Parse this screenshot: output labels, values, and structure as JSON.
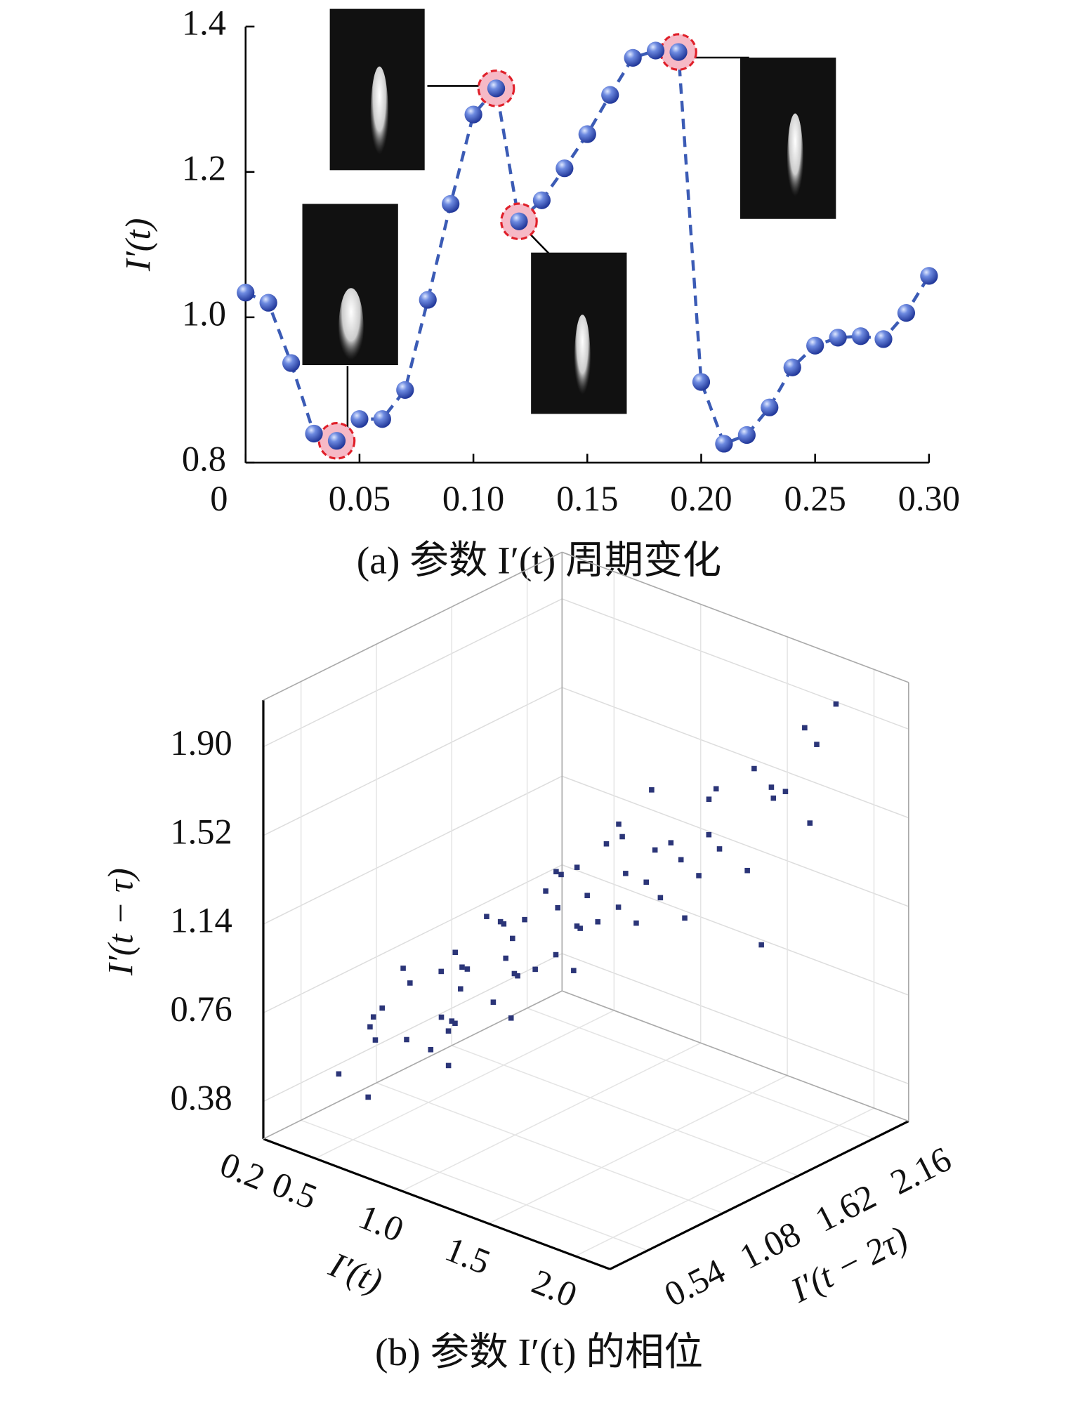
{
  "chart_data": [
    {
      "type": "line",
      "caption": "(a) 参数 I′(t) 周期变化",
      "ylabel": "I′(t)",
      "x": [
        0.0,
        0.01,
        0.02,
        0.03,
        0.04,
        0.05,
        0.06,
        0.07,
        0.08,
        0.09,
        0.1,
        0.11,
        0.12,
        0.13,
        0.14,
        0.15,
        0.16,
        0.17,
        0.18,
        0.19,
        0.2,
        0.21,
        0.22,
        0.23,
        0.24,
        0.25,
        0.26,
        0.27,
        0.28,
        0.29,
        0.3
      ],
      "values": [
        1.034,
        1.02,
        0.937,
        0.84,
        0.83,
        0.86,
        0.86,
        0.9,
        1.024,
        1.156,
        1.279,
        1.315,
        1.132,
        1.161,
        1.205,
        1.252,
        1.306,
        1.357,
        1.367,
        1.365,
        0.911,
        0.826,
        0.838,
        0.876,
        0.931,
        0.961,
        0.972,
        0.974,
        0.97,
        1.006,
        1.057
      ],
      "color": "#3b5bb5",
      "highlighted": [
        4,
        11,
        12,
        19
      ],
      "xlim": [
        0,
        0.3
      ],
      "xticks": [
        0,
        0.05,
        {
          "value": 0.1,
          "label": "0.10"
        },
        0.15,
        {
          "value": 0.2,
          "label": "0.20"
        },
        0.25,
        {
          "value": 0.3,
          "label": "0.30"
        }
      ],
      "ylim": [
        0.8,
        1.4
      ],
      "yticks": [
        0.8,
        {
          "value": 1,
          "label": "1.0"
        },
        1.2,
        1.4
      ]
    },
    {
      "type": "scatter3d",
      "caption": "(b) 参数 I′(t) 的相位",
      "xlabel": "I′(t)",
      "ylabel": "I′(t − 2τ)",
      "zlabel": "I′(t − τ)",
      "color": "#2b3578",
      "x": [
        0.45,
        0.55,
        0.6,
        0.7,
        0.75,
        0.8,
        0.85,
        0.9,
        0.95,
        1.0,
        1.05,
        1.1,
        1.15,
        1.2,
        0.65,
        0.72,
        0.88,
        0.98,
        1.08,
        1.18,
        1.25,
        1.3,
        1.35,
        1.4,
        1.45,
        1.5,
        0.5,
        0.62,
        0.78,
        0.92,
        1.02,
        1.12,
        1.22,
        1.32,
        1.42,
        1.55,
        1.6,
        1.7,
        1.75,
        1.8,
        1.85,
        1.9,
        1.95,
        2.0,
        0.58,
        0.68,
        0.82,
        0.96,
        1.06,
        1.16,
        1.26,
        1.36,
        1.48,
        1.58,
        1.68,
        1.78,
        1.88,
        1.98,
        0.7,
        0.9,
        1.1,
        1.3,
        1.5,
        1.7,
        0.6,
        0.8,
        1.0,
        1.2,
        1.4,
        1.6
      ],
      "y": [
        0.5,
        0.6,
        0.8,
        0.7,
        1.0,
        0.9,
        1.2,
        1.1,
        0.8,
        1.3,
        1.0,
        1.4,
        1.2,
        1.6,
        0.5,
        0.9,
        0.7,
        1.1,
        0.9,
        1.3,
        1.1,
        1.5,
        1.3,
        1.7,
        1.5,
        1.9,
        0.7,
        0.6,
        0.9,
        0.8,
        1.2,
        1.0,
        1.4,
        1.2,
        1.6,
        1.4,
        1.8,
        1.6,
        2.0,
        1.8,
        2.1,
        1.9,
        2.2,
        2.0,
        0.8,
        1.0,
        1.1,
        0.7,
        1.3,
        0.9,
        1.5,
        1.1,
        1.7,
        1.3,
        1.9,
        1.5,
        2.1,
        1.7,
        0.4,
        0.6,
        0.8,
        1.0,
        1.2,
        1.4,
        1.1,
        1.3,
        1.5,
        1.7,
        1.9,
        2.1
      ],
      "z": [
        0.5,
        0.7,
        0.6,
        0.9,
        0.8,
        1.0,
        0.9,
        1.1,
        1.0,
        1.2,
        1.1,
        1.3,
        1.2,
        1.4,
        0.8,
        0.7,
        1.0,
        0.9,
        1.2,
        1.1,
        1.4,
        1.3,
        1.5,
        1.4,
        1.7,
        1.6,
        0.6,
        0.8,
        0.7,
        1.0,
        0.9,
        1.2,
        1.1,
        1.3,
        1.2,
        1.5,
        1.4,
        1.7,
        1.6,
        1.8,
        1.9,
        1.7,
        2.0,
        1.9,
        0.9,
        0.6,
        1.1,
        0.8,
        1.3,
        1.0,
        1.5,
        1.2,
        1.1,
        1.4,
        1.3,
        1.6,
        1.5,
        1.8,
        0.5,
        0.7,
        0.9,
        1.1,
        1.3,
        1.5,
        0.4,
        0.6,
        0.8,
        1.0,
        1.2,
        0.9
      ],
      "xlim": [
        0.2,
        2.2
      ],
      "xticks": [
        0.2,
        0.5,
        {
          "value": 1,
          "label": "1.0"
        },
        1.5,
        {
          "value": 2,
          "label": "2.0"
        }
      ],
      "ylim": [
        0.27,
        2.41
      ],
      "yticks": [
        0.54,
        1.08,
        1.62,
        2.16
      ],
      "zlim": [
        0.22,
        2.1
      ],
      "zticks": [
        0.38,
        0.76,
        1.14,
        1.52,
        {
          "value": 1.9,
          "label": "1.90"
        }
      ]
    }
  ]
}
